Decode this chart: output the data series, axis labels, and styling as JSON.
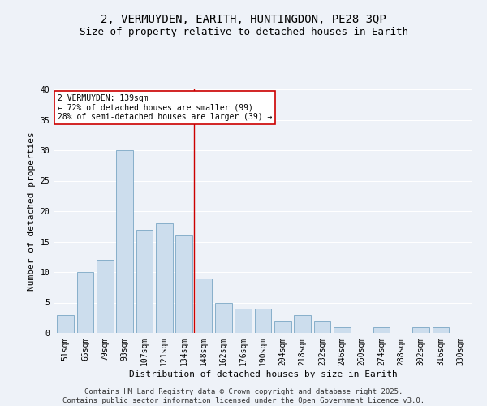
{
  "title": "2, VERMUYDEN, EARITH, HUNTINGDON, PE28 3QP",
  "subtitle": "Size of property relative to detached houses in Earith",
  "xlabel": "Distribution of detached houses by size in Earith",
  "ylabel": "Number of detached properties",
  "categories": [
    "51sqm",
    "65sqm",
    "79sqm",
    "93sqm",
    "107sqm",
    "121sqm",
    "134sqm",
    "148sqm",
    "162sqm",
    "176sqm",
    "190sqm",
    "204sqm",
    "218sqm",
    "232sqm",
    "246sqm",
    "260sqm",
    "274sqm",
    "288sqm",
    "302sqm",
    "316sqm",
    "330sqm"
  ],
  "values": [
    3,
    10,
    12,
    30,
    17,
    18,
    16,
    9,
    5,
    4,
    4,
    2,
    3,
    2,
    1,
    0,
    1,
    0,
    1,
    1,
    0
  ],
  "bar_color": "#ccdded",
  "bar_edge_color": "#6699bb",
  "vline_x": 6.5,
  "vline_color": "#cc0000",
  "annotation_text": "2 VERMUYDEN: 139sqm\n← 72% of detached houses are smaller (99)\n28% of semi-detached houses are larger (39) →",
  "annotation_box_color": "#ffffff",
  "annotation_box_edge": "#cc0000",
  "ylim": [
    0,
    40
  ],
  "yticks": [
    0,
    5,
    10,
    15,
    20,
    25,
    30,
    35,
    40
  ],
  "footnote": "Contains HM Land Registry data © Crown copyright and database right 2025.\nContains public sector information licensed under the Open Government Licence v3.0.",
  "bg_color": "#eef2f8",
  "grid_color": "#ffffff",
  "title_fontsize": 10,
  "subtitle_fontsize": 9,
  "axis_label_fontsize": 8,
  "tick_fontsize": 7,
  "footnote_fontsize": 6.5
}
